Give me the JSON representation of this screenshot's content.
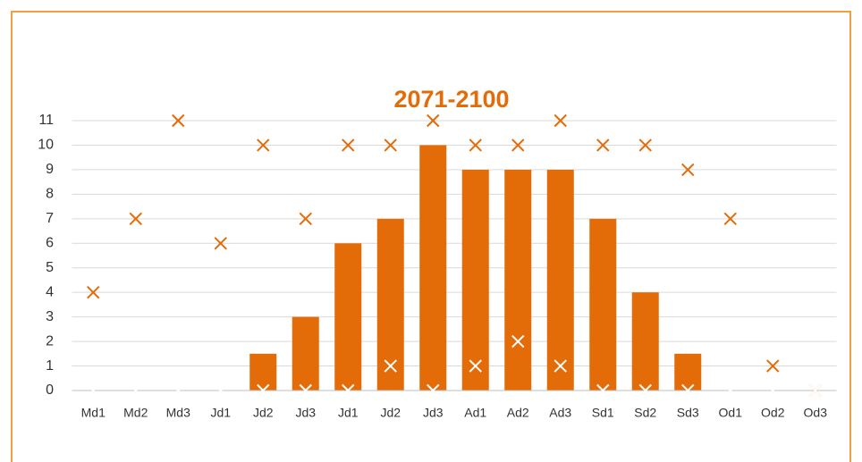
{
  "chart_data": {
    "type": "bar",
    "title": "2071-2100",
    "categories": [
      "Md1",
      "Md2",
      "Md3",
      "Jd1",
      "Jd2",
      "Jd3",
      "Jd1",
      "Jd2",
      "Jd3",
      "Ad1",
      "Ad2",
      "Ad3",
      "Sd1",
      "Sd2",
      "Sd3",
      "Od1",
      "Od2",
      "Od3"
    ],
    "bars": {
      "color": "#e36c09",
      "values": [
        0,
        0,
        0,
        0,
        1.5,
        3,
        6,
        7,
        10,
        9,
        9,
        9,
        7,
        4,
        1.5,
        0,
        0,
        0
      ]
    },
    "markers": [
      {
        "color": "#e36c09",
        "values": [
          4,
          7,
          11,
          6,
          10,
          7,
          10,
          10,
          11,
          10,
          10,
          11,
          10,
          10,
          9,
          7,
          1,
          0
        ]
      },
      {
        "color": "#ffffff",
        "values": [
          0,
          0,
          0,
          0,
          0,
          0,
          0,
          1,
          0,
          1,
          2,
          1,
          0,
          0,
          0,
          0,
          0,
          0
        ]
      }
    ],
    "ylim": [
      0,
      11
    ],
    "yticks": [
      0,
      1,
      2,
      3,
      4,
      5,
      6,
      7,
      8,
      9,
      10,
      11
    ],
    "grid": true
  }
}
